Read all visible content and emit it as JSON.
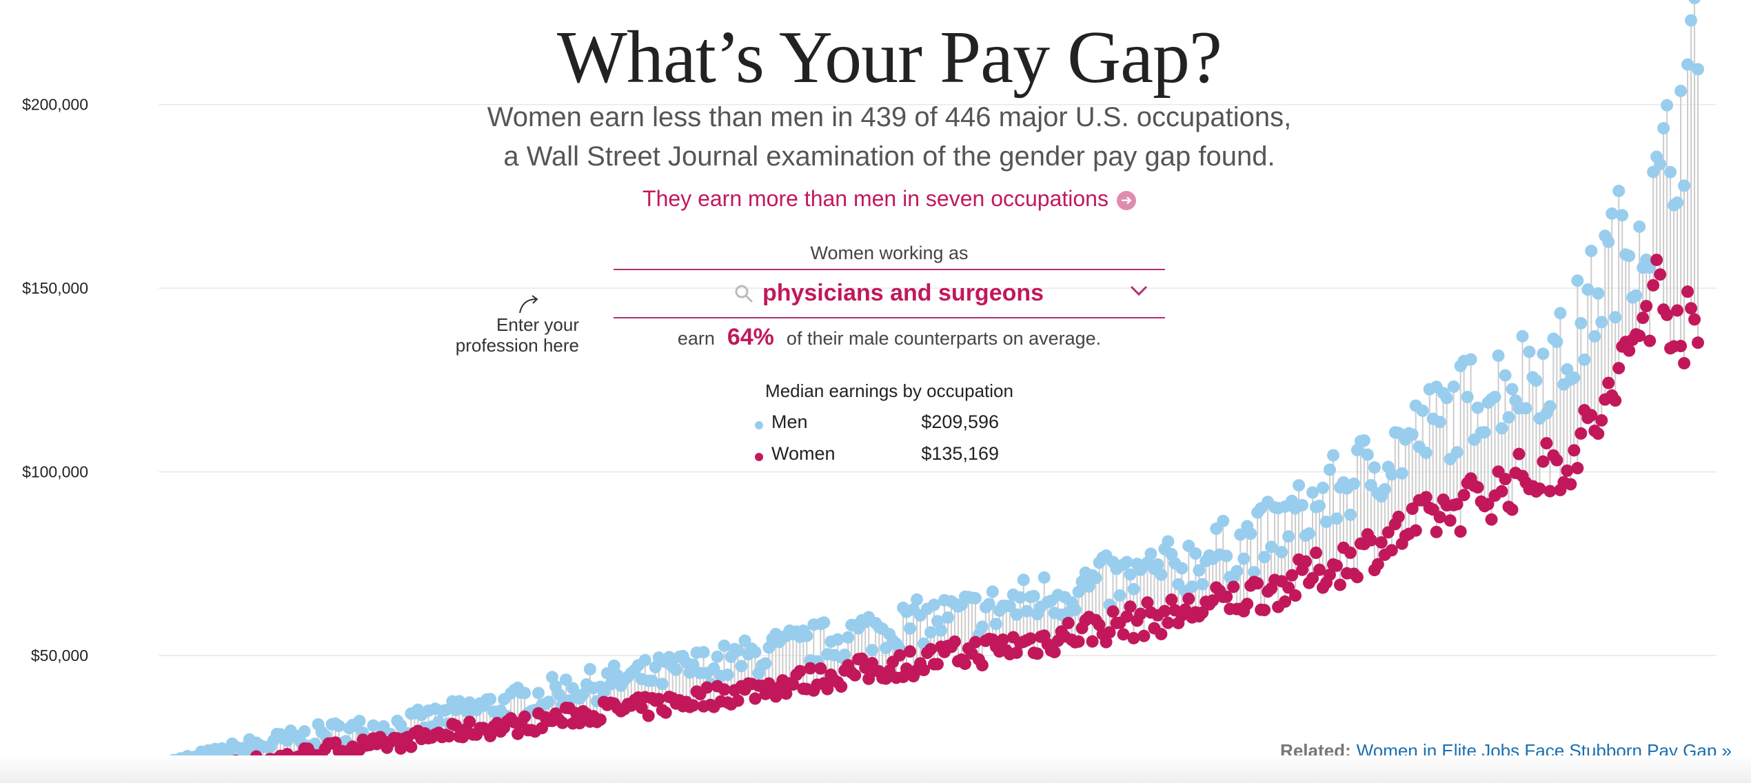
{
  "header": {
    "title": "What’s Your Pay Gap?",
    "subtitle_line1": "Women earn less than men in 439 of 446 major U.S. occupations,",
    "subtitle_line2": "a Wall Street Journal examination of the gender pay gap found.",
    "more_link": "They earn more than men in seven occupations"
  },
  "selector": {
    "label_before": "Women working as",
    "selected": "physicians and surgeons",
    "earn_prefix": "earn",
    "earn_percent": "64%",
    "earn_suffix": "of their male counterparts on average."
  },
  "hint": {
    "line1": "Enter your",
    "line2": "profession here"
  },
  "legend": {
    "title": "Median earnings by occupation",
    "men_label": "Men",
    "men_value": "$209,596",
    "women_label": "Women",
    "women_value": "$135,169",
    "men_color": "#98cdee",
    "women_color": "#c2185b"
  },
  "related": {
    "label": "Related:",
    "link": "Women in Elite Jobs Face Stubborn Pay Gap »"
  },
  "chart_data": {
    "type": "scatter",
    "title": "What’s Your Pay Gap?",
    "xlabel": "",
    "ylabel": "",
    "yticks": [
      "$50,000",
      "$100,000",
      "$150,000",
      "$200,000"
    ],
    "ytick_values": [
      50000,
      100000,
      150000,
      200000
    ],
    "ylim": [
      12000,
      210000
    ],
    "grid": true,
    "n_occupations": 446,
    "highlighted_occupation": "physicians and surgeons",
    "highlighted_men": 209596,
    "highlighted_women": 135169,
    "series": [
      {
        "name": "Men",
        "color": "#98cdee",
        "values": [
          20000,
          22000,
          25000,
          27000,
          29000,
          30000,
          32000,
          35000,
          37000,
          40000,
          42000,
          44000,
          46000,
          48000,
          51000,
          53000,
          56000,
          58000,
          60000,
          62000,
          65000,
          68000,
          70000,
          73000,
          77000,
          81000,
          88000,
          96000,
          104000,
          112000,
          120000,
          125000,
          130000,
          156000,
          170000,
          209596
        ]
      },
      {
        "name": "Women",
        "color": "#c2185b",
        "values": [
          17000,
          19000,
          21000,
          23000,
          25000,
          26000,
          28000,
          30000,
          31000,
          33000,
          35000,
          36000,
          38000,
          40000,
          42000,
          44000,
          46000,
          48000,
          50000,
          52000,
          54000,
          57000,
          59000,
          61000,
          64000,
          67000,
          71000,
          76000,
          82000,
          88000,
          93000,
          98000,
          103000,
          119000,
          150000,
          135169
        ]
      }
    ]
  }
}
